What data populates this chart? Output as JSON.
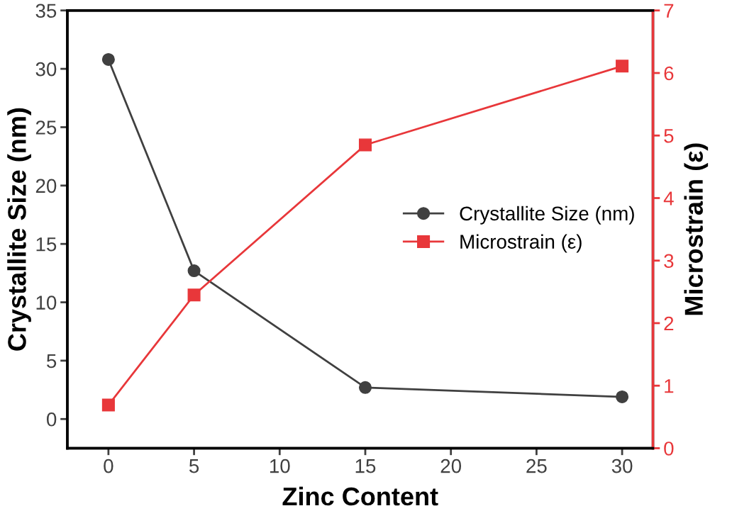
{
  "chart_data": {
    "type": "line",
    "xlabel": "Zinc Content",
    "ylabel": "Crystallite Size (nm)",
    "y2label": "Microstrain (ε)",
    "x": [
      0,
      5,
      15,
      30
    ],
    "series": [
      {
        "name": "Crystallite Size (nm)",
        "color": "#404040",
        "marker": "circle",
        "values": [
          30.8,
          12.7,
          2.7,
          1.9
        ]
      },
      {
        "name": "Microstrain (ε)",
        "color": "#e8373a",
        "marker": "square",
        "axis": "y2",
        "values": [
          0.69,
          2.45,
          4.85,
          6.11
        ]
      }
    ],
    "xlim": [
      -2.4,
      31.8
    ],
    "xticks": [
      0,
      5,
      10,
      15,
      20,
      25,
      30
    ],
    "ylim": [
      -2.5,
      35
    ],
    "yticks": [
      0,
      5,
      10,
      15,
      20,
      25,
      30,
      35
    ],
    "y2lim": [
      0,
      7
    ],
    "y2ticks": [
      0,
      1,
      2,
      3,
      4,
      5,
      6,
      7
    ],
    "legend": "center right",
    "grid": false,
    "line_style": "solid"
  }
}
